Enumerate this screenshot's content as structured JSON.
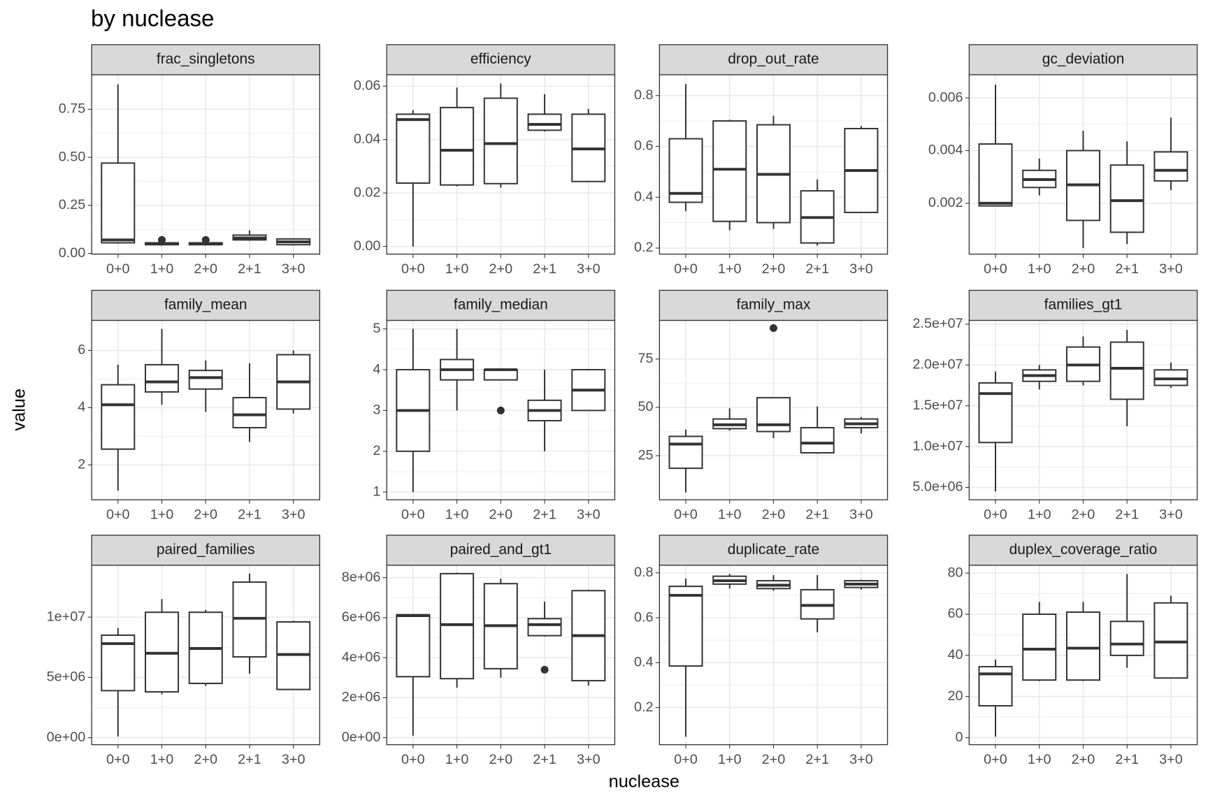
{
  "title": "by nuclease",
  "x_label": "nuclease",
  "y_label": "value",
  "chart_data": [
    {
      "type": "box",
      "title": "frac_singletons",
      "color": "#333333",
      "grid": true,
      "categories": [
        "0+0",
        "1+0",
        "2+0",
        "2+1",
        "3+0"
      ],
      "whisker_low": [
        0.05,
        0.04,
        0.04,
        0.065,
        0.04
      ],
      "q1": [
        0.055,
        0.045,
        0.045,
        0.07,
        0.045
      ],
      "median": [
        0.07,
        0.05,
        0.05,
        0.08,
        0.06
      ],
      "q3": [
        0.47,
        0.055,
        0.055,
        0.095,
        0.075
      ],
      "whisker_high": [
        0.88,
        0.06,
        0.06,
        0.12,
        0.075
      ],
      "outliers": [
        [],
        [
          0.07
        ],
        [
          0.07
        ],
        [],
        []
      ],
      "ylim": [
        -0.004,
        0.93
      ],
      "yticks": [
        {
          "value": 0,
          "label": "0.00"
        },
        0.25,
        {
          "value": 0.5,
          "label": "0.50"
        },
        0.75
      ]
    },
    {
      "type": "box",
      "title": "efficiency",
      "color": "#333333",
      "grid": true,
      "categories": [
        "0+0",
        "1+0",
        "2+0",
        "2+1",
        "3+0"
      ],
      "whisker_low": [
        0.0,
        0.0225,
        0.022,
        0.043,
        0.024
      ],
      "q1": [
        0.0237,
        0.023,
        0.0235,
        0.0435,
        0.0243
      ],
      "median": [
        0.0475,
        0.036,
        0.0385,
        0.0457,
        0.0365
      ],
      "q3": [
        0.0495,
        0.052,
        0.0555,
        0.0495,
        0.0495
      ],
      "whisker_high": [
        0.051,
        0.0595,
        0.061,
        0.057,
        0.0515
      ],
      "outliers": [
        [],
        [],
        [],
        [],
        []
      ],
      "ylim": [
        -0.0029,
        0.0643
      ],
      "yticks": [
        {
          "value": 0,
          "label": "0.00"
        },
        0.02,
        0.04,
        0.06
      ]
    },
    {
      "type": "box",
      "title": "drop_out_rate",
      "color": "#333333",
      "grid": true,
      "categories": [
        "0+0",
        "1+0",
        "2+0",
        "2+1",
        "3+0"
      ],
      "whisker_low": [
        0.345,
        0.27,
        0.275,
        0.21,
        0.34
      ],
      "q1": [
        0.38,
        0.305,
        0.3,
        0.22,
        0.34
      ],
      "median": [
        0.415,
        0.51,
        0.49,
        0.32,
        0.505
      ],
      "q3": [
        0.63,
        0.7,
        0.685,
        0.425,
        0.67
      ],
      "whisker_high": [
        0.845,
        0.705,
        0.72,
        0.47,
        0.68
      ],
      "outliers": [
        [],
        [],
        [],
        [],
        []
      ],
      "ylim": [
        0.176,
        0.882
      ],
      "yticks": [
        0.2,
        0.4,
        0.6,
        0.8
      ]
    },
    {
      "type": "box",
      "title": "gc_deviation",
      "color": "#333333",
      "grid": true,
      "categories": [
        "0+0",
        "1+0",
        "2+0",
        "2+1",
        "3+0"
      ],
      "whisker_low": [
        0.0019,
        0.0023,
        0.0003,
        0.00045,
        0.0025
      ],
      "q1": [
        0.0019,
        0.0026,
        0.00135,
        0.0009,
        0.00285
      ],
      "median": [
        0.002,
        0.0029,
        0.0027,
        0.0021,
        0.00325
      ],
      "q3": [
        0.00425,
        0.00325,
        0.004,
        0.00345,
        0.00395
      ],
      "whisker_high": [
        0.0065,
        0.0037,
        0.00475,
        0.00435,
        0.00525
      ],
      "outliers": [
        [],
        [],
        [],
        [],
        []
      ],
      "ylim": [
        7e-05,
        0.00688
      ],
      "yticks": [
        0.002,
        0.004,
        0.006
      ]
    },
    {
      "type": "box",
      "title": "family_mean",
      "color": "#333333",
      "grid": true,
      "categories": [
        "0+0",
        "1+0",
        "2+0",
        "2+1",
        "3+0"
      ],
      "whisker_low": [
        1.1,
        4.1,
        3.85,
        2.8,
        3.8
      ],
      "q1": [
        2.55,
        4.55,
        4.65,
        3.3,
        3.95
      ],
      "median": [
        4.1,
        4.9,
        5.05,
        3.75,
        4.9
      ],
      "q3": [
        4.8,
        5.5,
        5.3,
        4.35,
        5.85
      ],
      "whisker_high": [
        5.5,
        6.75,
        5.65,
        5.55,
        6.0
      ],
      "outliers": [
        [],
        [],
        [],
        [],
        []
      ],
      "ylim": [
        0.78,
        7.05
      ],
      "yticks": [
        2,
        4,
        6
      ]
    },
    {
      "type": "box",
      "title": "family_median",
      "color": "#333333",
      "grid": true,
      "categories": [
        "0+0",
        "1+0",
        "2+0",
        "2+1",
        "3+0"
      ],
      "whisker_low": [
        1,
        3,
        3.75,
        2,
        3
      ],
      "q1": [
        2,
        3.75,
        3.75,
        2.75,
        3
      ],
      "median": [
        3,
        4,
        4,
        3,
        3.5
      ],
      "q3": [
        4,
        4.25,
        4,
        3.25,
        4
      ],
      "whisker_high": [
        5,
        5,
        4,
        4,
        4
      ],
      "outliers": [
        [],
        [],
        [
          3
        ],
        [],
        []
      ],
      "ylim": [
        0.81,
        5.21
      ],
      "yticks": [
        1,
        2,
        3,
        4,
        5
      ]
    },
    {
      "type": "box",
      "title": "family_max",
      "color": "#333333",
      "grid": true,
      "categories": [
        "0+0",
        "1+0",
        "2+0",
        "2+1",
        "3+0"
      ],
      "whisker_low": [
        6,
        38,
        34,
        26,
        36.5
      ],
      "q1": [
        18.5,
        39,
        37.5,
        26.5,
        39.5
      ],
      "median": [
        31,
        41,
        41,
        31.5,
        41.5
      ],
      "q3": [
        35,
        44,
        55,
        39.5,
        44
      ],
      "whisker_high": [
        38.5,
        49.5,
        55,
        50.5,
        45
      ],
      "outliers": [
        [],
        [],
        [
          91
        ],
        [],
        []
      ],
      "ylim": [
        2.2,
        95
      ],
      "yticks": [
        25,
        50,
        75
      ]
    },
    {
      "type": "box",
      "title": "families_gt1",
      "color": "#333333",
      "grid": true,
      "categories": [
        "0+0",
        "1+0",
        "2+0",
        "2+1",
        "3+0"
      ],
      "whisker_low": [
        4500000,
        17000000,
        17500000,
        12500000,
        17200000
      ],
      "q1": [
        10500000,
        18000000,
        18000000,
        15800000,
        17500000
      ],
      "median": [
        16500000,
        18700000,
        20000000,
        19600000,
        18300000
      ],
      "q3": [
        17800000,
        19400000,
        22200000,
        22800000,
        19400000
      ],
      "whisker_high": [
        19200000,
        20000000,
        23500000,
        24300000,
        20300000
      ],
      "outliers": [
        [],
        [],
        [],
        [],
        []
      ],
      "ylim": [
        3480000,
        25470000
      ],
      "yticks": [
        {
          "value": 5000000,
          "label": "5.0e+06"
        },
        {
          "value": 10000000,
          "label": "1.0e+07"
        },
        {
          "value": 15000000,
          "label": "1.5e+07"
        },
        {
          "value": 20000000,
          "label": "2.0e+07"
        },
        {
          "value": 25000000,
          "label": "2.5e+07"
        }
      ]
    },
    {
      "type": "box",
      "title": "paired_families",
      "color": "#333333",
      "grid": true,
      "categories": [
        "0+0",
        "1+0",
        "2+0",
        "2+1",
        "3+0"
      ],
      "whisker_low": [
        100000,
        3600000,
        4300000,
        5300000,
        4000000
      ],
      "q1": [
        3900000,
        3800000,
        4500000,
        6700000,
        4000000
      ],
      "median": [
        7800000,
        7000000,
        7400000,
        9900000,
        6900000
      ],
      "q3": [
        8500000,
        10400000,
        10400000,
        12900000,
        9600000
      ],
      "whisker_high": [
        9100000,
        11500000,
        10600000,
        13600000,
        9700000
      ],
      "outliers": [
        [],
        [],
        [],
        [],
        []
      ],
      "ylim": [
        -580000,
        14300000
      ],
      "yticks": [
        {
          "value": 0,
          "label": "0e+00"
        },
        {
          "value": 5000000,
          "label": "5e+06"
        },
        {
          "value": 10000000,
          "label": "1e+07"
        }
      ]
    },
    {
      "type": "box",
      "title": "paired_and_gt1",
      "color": "#333333",
      "grid": true,
      "categories": [
        "0+0",
        "1+0",
        "2+0",
        "2+1",
        "3+0"
      ],
      "whisker_low": [
        100000,
        2500000,
        3000000,
        5050000,
        2600000
      ],
      "q1": [
        3050000,
        2950000,
        3450000,
        5100000,
        2850000
      ],
      "median": [
        6100000,
        5650000,
        5600000,
        5650000,
        5100000
      ],
      "q3": [
        6150000,
        8200000,
        7700000,
        5950000,
        7350000
      ],
      "whisker_high": [
        6150000,
        8250000,
        7950000,
        6800000,
        7400000
      ],
      "outliers": [
        [],
        [],
        [],
        [
          3400000
        ],
        []
      ],
      "ylim": [
        -350000,
        8620000
      ],
      "yticks": [
        {
          "value": 0,
          "label": "0e+00"
        },
        {
          "value": 2000000,
          "label": "2e+06"
        },
        {
          "value": 4000000,
          "label": "4e+06"
        },
        {
          "value": 6000000,
          "label": "6e+06"
        },
        {
          "value": 8000000,
          "label": "8e+06"
        }
      ]
    },
    {
      "type": "box",
      "title": "duplicate_rate",
      "color": "#333333",
      "grid": true,
      "categories": [
        "0+0",
        "1+0",
        "2+0",
        "2+1",
        "3+0"
      ],
      "whisker_low": [
        0.07,
        0.73,
        0.72,
        0.535,
        0.725
      ],
      "q1": [
        0.385,
        0.75,
        0.73,
        0.595,
        0.735
      ],
      "median": [
        0.7,
        0.765,
        0.745,
        0.655,
        0.75
      ],
      "q3": [
        0.74,
        0.785,
        0.765,
        0.725,
        0.765
      ],
      "whisker_high": [
        0.775,
        0.795,
        0.79,
        0.79,
        0.77
      ],
      "outliers": [
        [],
        [],
        [],
        [],
        []
      ],
      "ylim": [
        0.0345,
        0.834
      ],
      "yticks": [
        0.2,
        0.4,
        0.6,
        0.8
      ]
    },
    {
      "type": "box",
      "title": "duplex_coverage_ratio",
      "color": "#333333",
      "grid": true,
      "categories": [
        "0+0",
        "1+0",
        "2+0",
        "2+1",
        "3+0"
      ],
      "whisker_low": [
        0.5,
        27.5,
        27.5,
        34,
        29
      ],
      "q1": [
        15.5,
        28,
        28,
        40,
        29
      ],
      "median": [
        31,
        43,
        43.5,
        45.5,
        46.5
      ],
      "q3": [
        34.5,
        60,
        61,
        56.5,
        65.5
      ],
      "whisker_high": [
        38,
        66,
        66,
        79.5,
        69
      ],
      "outliers": [
        [],
        [],
        [],
        [],
        []
      ],
      "ylim": [
        -3.4,
        83.8
      ],
      "yticks": [
        0,
        20,
        40,
        60,
        80
      ]
    }
  ]
}
